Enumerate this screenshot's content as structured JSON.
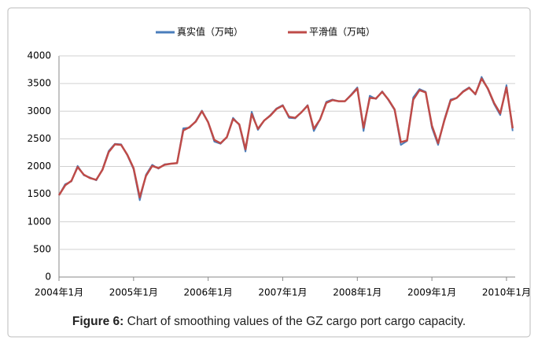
{
  "chart_data": {
    "type": "line",
    "categories": [
      "2004年1月",
      null,
      null,
      null,
      null,
      null,
      null,
      null,
      null,
      null,
      null,
      null,
      "2005年1月",
      null,
      null,
      null,
      null,
      null,
      null,
      null,
      null,
      null,
      null,
      null,
      "2006年1月",
      null,
      null,
      null,
      null,
      null,
      null,
      null,
      null,
      null,
      null,
      null,
      "2007年1月",
      null,
      null,
      null,
      null,
      null,
      null,
      null,
      null,
      null,
      null,
      null,
      "2008年1月",
      null,
      null,
      null,
      null,
      null,
      null,
      null,
      null,
      null,
      null,
      null,
      "2009年1月",
      null,
      null,
      null,
      null,
      null,
      null,
      null,
      null,
      null,
      null,
      null,
      "2010年1月",
      null
    ],
    "series": [
      {
        "name": "真实值（万吨）",
        "color": "#4a7ebb",
        "values": [
          1480,
          1680,
          1730,
          2010,
          1840,
          1800,
          1750,
          1950,
          2280,
          2410,
          2400,
          2200,
          1950,
          1390,
          1850,
          2030,
          1960,
          2040,
          2050,
          2060,
          2690,
          2700,
          2820,
          3010,
          2800,
          2450,
          2410,
          2530,
          2880,
          2750,
          2270,
          2990,
          2660,
          2830,
          2930,
          3050,
          3110,
          2880,
          2870,
          2980,
          3110,
          2640,
          2850,
          3170,
          3210,
          3180,
          3180,
          3300,
          3430,
          2640,
          3280,
          3220,
          3360,
          3200,
          3020,
          2390,
          2460,
          3250,
          3400,
          3350,
          2700,
          2390,
          2850,
          3210,
          3240,
          3360,
          3430,
          3300,
          3620,
          3400,
          3130,
          2930,
          3470,
          2640
        ]
      },
      {
        "name": "平滑值（万吨）",
        "color": "#be4b48",
        "values": [
          1480,
          1660,
          1740,
          1990,
          1850,
          1790,
          1760,
          1940,
          2260,
          2400,
          2390,
          2210,
          1970,
          1440,
          1830,
          2010,
          1970,
          2030,
          2050,
          2060,
          2650,
          2710,
          2810,
          3000,
          2800,
          2480,
          2420,
          2530,
          2860,
          2760,
          2310,
          2950,
          2680,
          2830,
          2920,
          3040,
          3100,
          2900,
          2880,
          2980,
          3100,
          2680,
          2850,
          3150,
          3200,
          3180,
          3180,
          3290,
          3410,
          2700,
          3240,
          3230,
          3350,
          3210,
          3030,
          2440,
          2470,
          3210,
          3380,
          3340,
          2740,
          2420,
          2830,
          3190,
          3240,
          3350,
          3420,
          3310,
          3590,
          3410,
          3150,
          2960,
          3430,
          2690
        ]
      }
    ],
    "ylim": [
      0,
      4000
    ],
    "yticks": [
      0,
      500,
      1000,
      1500,
      2000,
      2500,
      3000,
      3500,
      4000
    ],
    "grid": true
  },
  "caption": {
    "label": "Figure 6:",
    "text": "Chart of smoothing values of the GZ cargo port cargo capacity."
  }
}
